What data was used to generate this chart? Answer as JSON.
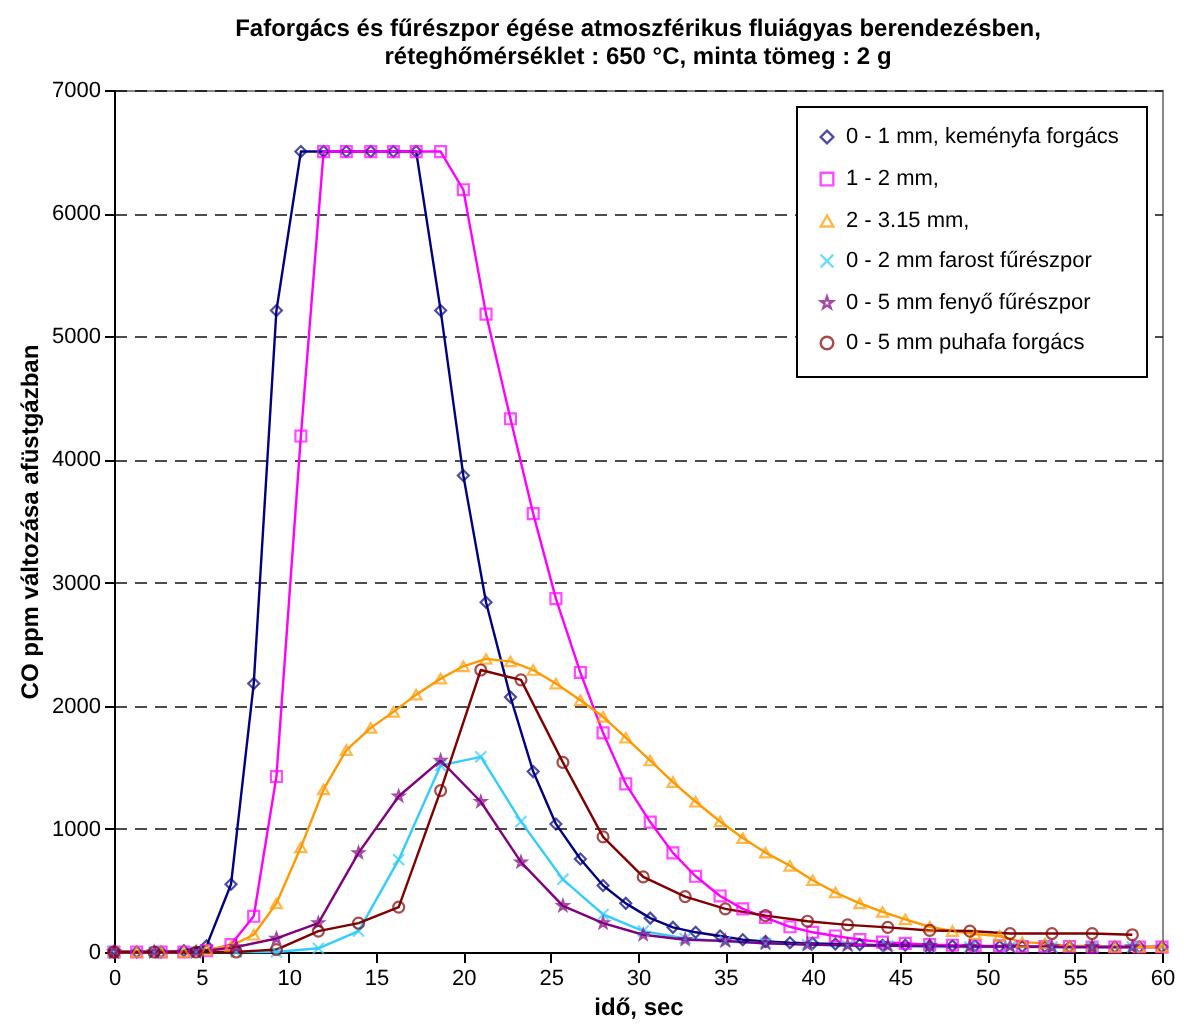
{
  "chart_data": {
    "type": "line",
    "title": [
      "Faforgács és fűrészpor égése atmoszférikus fluiágyas berendezésben,",
      "réteghőmérséklet  : 650 °C, minta tömeg : 2 g"
    ],
    "xlabel": "idő,  sec",
    "ylabel": "CO ppm változása afüstgázban",
    "xlim": [
      0,
      60
    ],
    "xticks": [
      0,
      5,
      10,
      15,
      20,
      25,
      30,
      35,
      40,
      45,
      50,
      55,
      60
    ],
    "ylim": [
      0,
      7000
    ],
    "yticks": [
      0,
      1000,
      2000,
      3000,
      4000,
      5000,
      6000,
      7000
    ],
    "grid": "y",
    "legend": "top right",
    "line_style": "solid",
    "series": [
      {
        "name": "0 - 1 mm,  keményfa forgács",
        "color": "#000080",
        "marker": "diamond",
        "x": [
          0,
          1.3,
          2.7,
          4,
          5.3,
          6.7,
          8,
          9.3,
          10.7,
          12,
          13.3,
          14.7,
          16,
          17.3,
          18.7,
          20,
          21.3,
          22.7,
          24,
          25.3,
          26.7,
          28,
          29.3,
          30.7,
          32,
          33.3,
          34.7,
          36,
          37.3,
          38.7,
          40,
          41.3,
          42.7,
          44,
          45.3,
          46.7,
          48,
          49.3,
          50.7,
          52,
          53.3,
          54.7,
          56,
          57.3,
          58.7,
          60
        ],
        "values": [
          0,
          0,
          0,
          10,
          50,
          550,
          2180,
          5210,
          6500,
          6500,
          6500,
          6500,
          6500,
          6500,
          5210,
          3870,
          2840,
          2070,
          1465,
          1040,
          755,
          540,
          395,
          275,
          200,
          160,
          130,
          100,
          85,
          75,
          70,
          65,
          60,
          55,
          55,
          50,
          50,
          50,
          45,
          45,
          45,
          40,
          40,
          40,
          40,
          40
        ]
      },
      {
        "name": "1 - 2 mm,",
        "color": "#ff00ff",
        "marker": "square",
        "x": [
          0,
          1.3,
          2.7,
          4,
          5.3,
          6.7,
          8,
          9.3,
          10.7,
          12,
          13.3,
          14.7,
          16,
          17.3,
          18.7,
          20,
          21.3,
          22.7,
          24,
          25.3,
          26.7,
          28,
          29.3,
          30.7,
          32,
          33.3,
          34.7,
          36,
          37.3,
          38.7,
          40,
          41.3,
          42.7,
          44,
          45.3,
          46.7,
          48,
          49.3,
          50.7,
          52,
          53.3,
          54.7,
          56,
          57.3,
          58.7,
          60
        ],
        "values": [
          0,
          0,
          0,
          0,
          10,
          60,
          290,
          1425,
          4190,
          6500,
          6500,
          6500,
          6500,
          6500,
          6500,
          6190,
          5180,
          4330,
          3560,
          2870,
          2270,
          1780,
          1365,
          1055,
          805,
          615,
          455,
          350,
          280,
          205,
          160,
          130,
          100,
          80,
          70,
          60,
          55,
          50,
          50,
          45,
          45,
          45,
          40,
          40,
          40,
          40
        ]
      },
      {
        "name": "2 - 3.15 mm,",
        "color": "#ff9900",
        "marker": "triangle",
        "x": [
          0,
          1.3,
          2.7,
          4,
          5.3,
          6.7,
          8,
          9.3,
          10.7,
          12,
          13.3,
          14.7,
          16,
          17.3,
          18.7,
          20,
          21.3,
          22.7,
          24,
          25.3,
          26.7,
          28,
          29.3,
          30.7,
          32,
          33.3,
          34.7,
          36,
          37.3,
          38.7,
          40,
          41.3,
          42.7,
          44,
          45.3,
          46.7,
          48,
          49.3,
          50.7,
          52,
          53.3,
          54.7,
          56,
          57.3,
          58.7,
          60
        ],
        "values": [
          0,
          0,
          0,
          0,
          20,
          50,
          140,
          395,
          850,
          1320,
          1640,
          1820,
          1950,
          2090,
          2220,
          2320,
          2380,
          2360,
          2290,
          2180,
          2045,
          1910,
          1740,
          1555,
          1380,
          1220,
          1060,
          925,
          807,
          700,
          583,
          483,
          395,
          325,
          265,
          205,
          170,
          145,
          130,
          80,
          70,
          50,
          50,
          40,
          40,
          40
        ]
      },
      {
        "name": "0 - 2 mm farost fűrészpor",
        "color": "#33ccff",
        "marker": "cross",
        "x": [
          0,
          2.3,
          4.7,
          7,
          9.3,
          11.7,
          14,
          16.3,
          18.7,
          21,
          23.3,
          25.7,
          28,
          30.3,
          32.7,
          35,
          37.3,
          39.7,
          42,
          44.3,
          46.7,
          49,
          51.3,
          53.7,
          56,
          58.3
        ],
        "values": [
          0,
          0,
          0,
          0,
          0,
          30,
          170,
          750,
          1515,
          1585,
          1060,
          590,
          305,
          170,
          110,
          85,
          70,
          60,
          50,
          50,
          40,
          40,
          40,
          40,
          40,
          40
        ]
      },
      {
        "name": "0 - 5 mm fenyő fűrészpor",
        "color": "#800080",
        "marker": "star",
        "x": [
          0,
          2.3,
          4.7,
          7,
          9.3,
          11.7,
          14,
          16.3,
          18.7,
          21,
          23.3,
          25.7,
          28,
          30.3,
          32.7,
          35,
          37.3,
          39.7,
          42,
          44.3,
          46.7,
          49,
          51.3,
          53.7,
          56,
          58.3
        ],
        "values": [
          0,
          0,
          0,
          40,
          110,
          235,
          805,
          1265,
          1555,
          1220,
          730,
          375,
          235,
          140,
          100,
          90,
          70,
          60,
          55,
          50,
          50,
          45,
          45,
          40,
          40,
          40
        ]
      },
      {
        "name": "0 - 5 mm puhafa forgács",
        "color": "#800000",
        "marker": "circle",
        "x": [
          0,
          2.3,
          4.7,
          7,
          9.3,
          11.7,
          14,
          16.3,
          18.7,
          21,
          23.3,
          25.7,
          28,
          30.3,
          32.7,
          35,
          37.3,
          39.7,
          42,
          44.3,
          46.7,
          49,
          51.3,
          53.7,
          56,
          58.3
        ],
        "values": [
          0,
          0,
          0,
          0,
          20,
          170,
          235,
          365,
          1310,
          2290,
          2210,
          1540,
          935,
          610,
          450,
          350,
          295,
          250,
          220,
          200,
          175,
          170,
          150,
          150,
          150,
          140
        ]
      }
    ]
  }
}
